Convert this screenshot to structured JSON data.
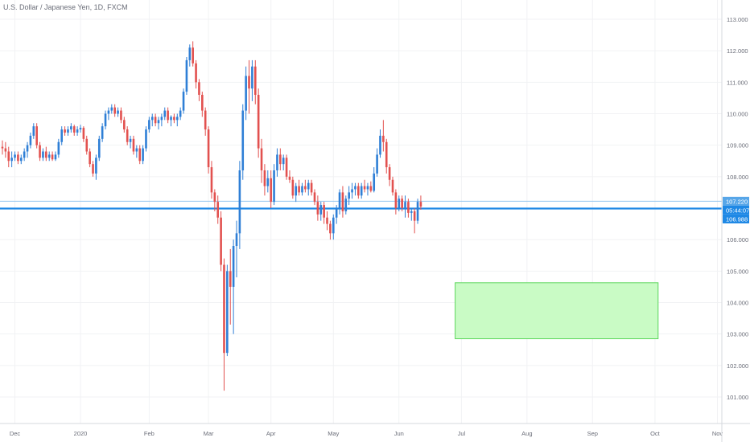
{
  "chart_data": {
    "type": "candlestick",
    "title": "U.S. Dollar / Japanese Yen, 1D, FXCM",
    "y_axis": {
      "ticks": [
        "113.000",
        "112.000",
        "111.000",
        "110.000",
        "109.000",
        "108.000",
        "107.000",
        "106.000",
        "105.000",
        "104.000",
        "103.000",
        "102.000",
        "101.000"
      ],
      "ylim": [
        100.25,
        113.35
      ],
      "position": "right"
    },
    "x_axis": {
      "ticks": [
        {
          "label": "Dec",
          "index": 4
        },
        {
          "label": "2020",
          "index": 25
        },
        {
          "label": "Feb",
          "index": 47
        },
        {
          "label": "Mar",
          "index": 66
        },
        {
          "label": "Apr",
          "index": 86
        },
        {
          "label": "May",
          "index": 106
        },
        {
          "label": "Jun",
          "index": 127
        },
        {
          "label": "Jul",
          "index": 147
        },
        {
          "label": "Aug",
          "index": 168
        },
        {
          "label": "Sep",
          "index": 189
        },
        {
          "label": "Oct",
          "index": 209
        },
        {
          "label": "Nov",
          "index": 229
        }
      ]
    },
    "price_labels": {
      "upper": "107.220",
      "countdown": "05:44:07",
      "current": "106.988"
    },
    "levels": [
      107.22,
      106.988
    ],
    "zone": {
      "start_index": 145,
      "end_index": 210,
      "top": 104.63,
      "bottom": 102.85
    },
    "candles": [
      [
        108.95,
        109.15,
        108.7,
        108.9
      ],
      [
        108.9,
        109.1,
        108.6,
        108.8
      ],
      [
        108.8,
        108.95,
        108.3,
        108.5
      ],
      [
        108.5,
        108.8,
        108.3,
        108.6
      ],
      [
        108.6,
        108.8,
        108.5,
        108.7
      ],
      [
        108.7,
        108.8,
        108.4,
        108.5
      ],
      [
        108.5,
        108.7,
        108.4,
        108.6
      ],
      [
        108.6,
        108.9,
        108.5,
        108.8
      ],
      [
        108.8,
        109.1,
        108.6,
        109.0
      ],
      [
        109.0,
        109.4,
        108.9,
        109.3
      ],
      [
        109.3,
        109.7,
        109.2,
        109.6
      ],
      [
        109.6,
        109.7,
        108.9,
        109.0
      ],
      [
        109.0,
        109.1,
        108.5,
        108.6
      ],
      [
        108.6,
        108.9,
        108.5,
        108.8
      ],
      [
        108.8,
        108.95,
        108.5,
        108.6
      ],
      [
        108.6,
        108.8,
        108.5,
        108.7
      ],
      [
        108.7,
        108.8,
        108.5,
        108.55
      ],
      [
        108.55,
        108.8,
        108.5,
        108.7
      ],
      [
        108.7,
        109.2,
        108.6,
        109.1
      ],
      [
        109.1,
        109.6,
        109.0,
        109.5
      ],
      [
        109.5,
        109.6,
        109.3,
        109.4
      ],
      [
        109.4,
        109.6,
        109.3,
        109.5
      ],
      [
        109.5,
        109.7,
        109.4,
        109.6
      ],
      [
        109.6,
        109.65,
        109.3,
        109.4
      ],
      [
        109.4,
        109.6,
        109.3,
        109.5
      ],
      [
        109.5,
        109.65,
        109.4,
        109.55
      ],
      [
        109.55,
        109.6,
        109.1,
        109.2
      ],
      [
        109.2,
        109.3,
        108.7,
        108.8
      ],
      [
        108.8,
        108.9,
        108.3,
        108.4
      ],
      [
        108.4,
        108.5,
        108.0,
        108.1
      ],
      [
        108.1,
        108.7,
        107.9,
        108.6
      ],
      [
        108.6,
        109.3,
        108.5,
        109.2
      ],
      [
        109.2,
        109.7,
        109.1,
        109.6
      ],
      [
        109.6,
        110.1,
        109.5,
        110.0
      ],
      [
        110.0,
        110.2,
        109.8,
        110.1
      ],
      [
        110.1,
        110.3,
        110.0,
        110.2
      ],
      [
        110.2,
        110.3,
        109.9,
        110.0
      ],
      [
        110.0,
        110.2,
        109.9,
        110.1
      ],
      [
        110.1,
        110.2,
        109.7,
        109.8
      ],
      [
        109.8,
        109.9,
        109.4,
        109.5
      ],
      [
        109.5,
        109.6,
        109.0,
        109.1
      ],
      [
        109.1,
        109.3,
        108.9,
        109.2
      ],
      [
        109.2,
        109.3,
        108.7,
        108.8
      ],
      [
        108.8,
        109.0,
        108.6,
        108.9
      ],
      [
        108.9,
        109.0,
        108.4,
        108.5
      ],
      [
        108.5,
        109.0,
        108.4,
        108.9
      ],
      [
        108.9,
        109.6,
        108.8,
        109.5
      ],
      [
        109.5,
        109.9,
        109.4,
        109.8
      ],
      [
        109.8,
        110.0,
        109.6,
        109.9
      ],
      [
        109.9,
        110.0,
        109.6,
        109.7
      ],
      [
        109.7,
        109.9,
        109.5,
        109.8
      ],
      [
        109.8,
        110.0,
        109.6,
        109.9
      ],
      [
        109.9,
        110.2,
        109.8,
        110.1
      ],
      [
        110.1,
        110.2,
        109.7,
        109.8
      ],
      [
        109.8,
        109.95,
        109.6,
        109.9
      ],
      [
        109.9,
        110.0,
        109.7,
        109.8
      ],
      [
        109.8,
        110.0,
        109.6,
        109.9
      ],
      [
        109.9,
        110.2,
        109.8,
        110.1
      ],
      [
        110.1,
        110.8,
        110.0,
        110.7
      ],
      [
        110.7,
        111.8,
        110.6,
        111.7
      ],
      [
        111.7,
        112.2,
        111.5,
        112.1
      ],
      [
        112.1,
        112.3,
        111.5,
        111.6
      ],
      [
        111.6,
        111.7,
        110.8,
        111.0
      ],
      [
        111.0,
        111.1,
        110.4,
        110.6
      ],
      [
        110.6,
        110.7,
        109.9,
        110.1
      ],
      [
        110.1,
        110.2,
        109.3,
        109.5
      ],
      [
        109.5,
        109.6,
        108.1,
        108.3
      ],
      [
        108.3,
        108.5,
        107.3,
        107.5
      ],
      [
        107.5,
        107.6,
        106.9,
        107.2
      ],
      [
        107.2,
        107.4,
        106.5,
        106.7
      ],
      [
        106.7,
        106.9,
        105.0,
        105.2
      ],
      [
        105.2,
        105.4,
        101.2,
        102.4
      ],
      [
        102.4,
        105.2,
        102.3,
        105.0
      ],
      [
        105.0,
        105.7,
        103.3,
        104.5
      ],
      [
        104.5,
        106.0,
        103.0,
        105.8
      ],
      [
        105.8,
        106.6,
        104.8,
        106.2
      ],
      [
        106.2,
        108.5,
        105.7,
        108.2
      ],
      [
        108.2,
        110.3,
        107.9,
        110.1
      ],
      [
        110.1,
        111.5,
        109.8,
        111.2
      ],
      [
        111.2,
        111.7,
        110.0,
        110.8
      ],
      [
        110.8,
        111.7,
        110.4,
        111.5
      ],
      [
        111.5,
        111.7,
        110.3,
        110.6
      ],
      [
        110.6,
        110.8,
        108.6,
        108.9
      ],
      [
        108.9,
        109.2,
        107.8,
        108.2
      ],
      [
        108.2,
        108.4,
        107.4,
        107.7
      ],
      [
        107.7,
        108.2,
        107.5,
        107.95
      ],
      [
        107.95,
        108.2,
        107.0,
        107.2
      ],
      [
        107.2,
        108.4,
        107.1,
        108.2
      ],
      [
        108.2,
        108.9,
        108.0,
        108.7
      ],
      [
        108.7,
        108.9,
        108.2,
        108.4
      ],
      [
        108.4,
        108.7,
        108.2,
        108.6
      ],
      [
        108.6,
        108.7,
        107.9,
        108.0
      ],
      [
        108.0,
        108.2,
        107.8,
        107.9
      ],
      [
        107.9,
        108.0,
        107.3,
        107.4
      ],
      [
        107.4,
        107.8,
        107.2,
        107.7
      ],
      [
        107.7,
        107.9,
        107.4,
        107.5
      ],
      [
        107.5,
        107.8,
        107.4,
        107.7
      ],
      [
        107.7,
        107.9,
        107.5,
        107.6
      ],
      [
        107.6,
        107.9,
        107.4,
        107.8
      ],
      [
        107.8,
        107.9,
        107.4,
        107.5
      ],
      [
        107.5,
        107.6,
        107.1,
        107.2
      ],
      [
        107.2,
        107.4,
        106.6,
        106.8
      ],
      [
        106.8,
        107.2,
        106.6,
        107.1
      ],
      [
        107.1,
        107.2,
        106.5,
        106.7
      ],
      [
        106.7,
        106.9,
        106.3,
        106.5
      ],
      [
        106.5,
        106.6,
        106.0,
        106.2
      ],
      [
        106.2,
        106.8,
        106.0,
        106.7
      ],
      [
        106.7,
        107.1,
        106.5,
        107.0
      ],
      [
        107.0,
        107.6,
        106.8,
        107.5
      ],
      [
        107.5,
        107.7,
        106.7,
        106.9
      ],
      [
        106.9,
        107.4,
        106.8,
        107.3
      ],
      [
        107.3,
        107.7,
        107.1,
        107.5
      ],
      [
        107.5,
        107.8,
        107.3,
        107.6
      ],
      [
        107.6,
        107.8,
        107.4,
        107.7
      ],
      [
        107.7,
        107.8,
        107.3,
        107.4
      ],
      [
        107.4,
        107.8,
        107.3,
        107.7
      ],
      [
        107.7,
        107.9,
        107.5,
        107.6
      ],
      [
        107.6,
        107.8,
        107.4,
        107.7
      ],
      [
        107.7,
        107.85,
        107.5,
        107.55
      ],
      [
        107.55,
        108.3,
        107.5,
        108.1
      ],
      [
        108.1,
        108.9,
        108.0,
        108.7
      ],
      [
        108.7,
        109.5,
        108.6,
        109.3
      ],
      [
        109.3,
        109.8,
        108.8,
        109.1
      ],
      [
        109.1,
        109.2,
        108.1,
        108.3
      ],
      [
        108.3,
        108.4,
        107.7,
        107.9
      ],
      [
        107.9,
        108.0,
        107.4,
        107.5
      ],
      [
        107.5,
        107.6,
        106.8,
        107.0
      ],
      [
        107.0,
        107.4,
        106.9,
        107.3
      ],
      [
        107.3,
        107.4,
        106.9,
        107.0
      ],
      [
        107.0,
        107.4,
        106.7,
        107.2
      ],
      [
        107.2,
        107.3,
        106.7,
        106.85
      ],
      [
        106.85,
        107.0,
        106.6,
        106.9
      ],
      [
        106.9,
        107.0,
        106.2,
        106.6
      ],
      [
        106.6,
        107.3,
        106.5,
        107.2
      ],
      [
        107.2,
        107.4,
        106.95,
        107.05
      ]
    ]
  }
}
